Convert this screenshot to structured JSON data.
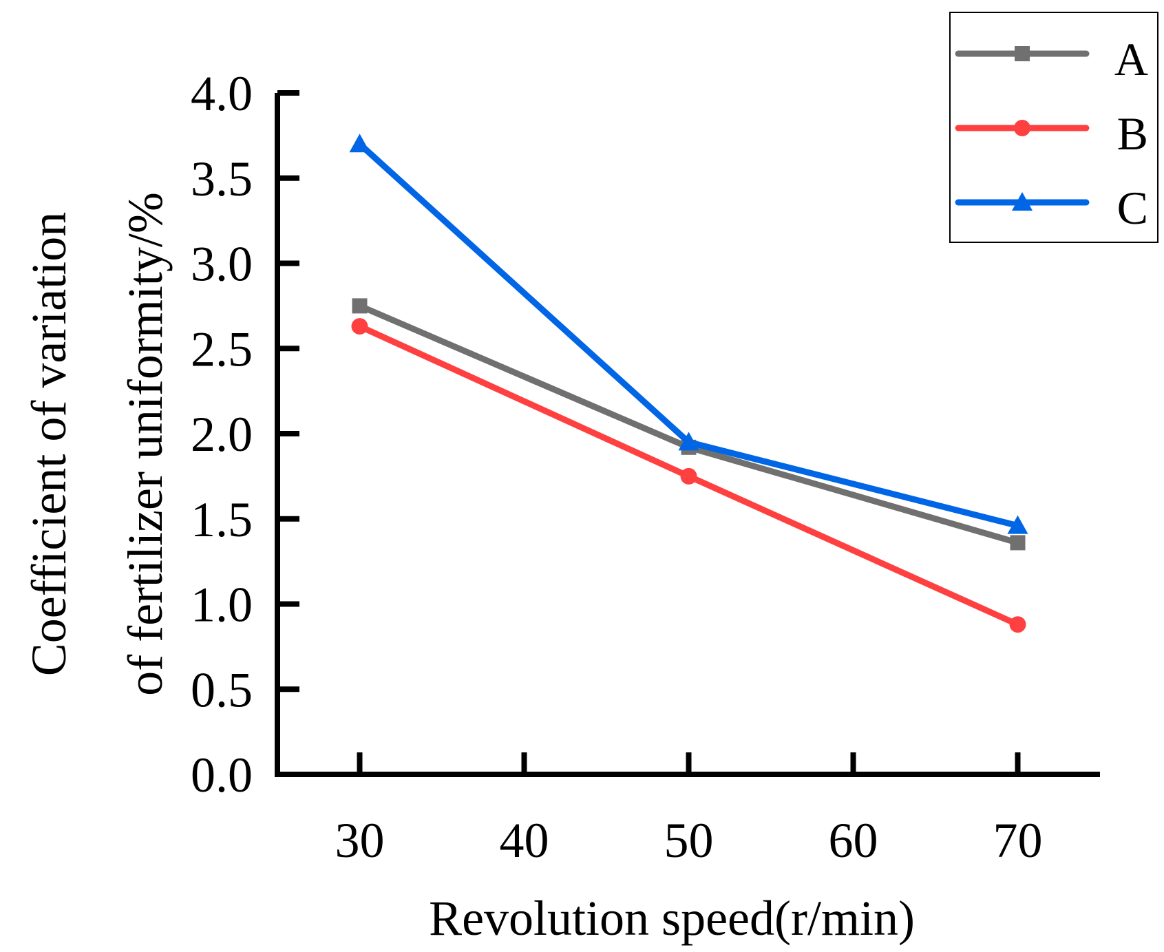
{
  "chart_data": {
    "type": "line",
    "title": "",
    "xlabel": "Revolution speed(r/min)",
    "ylabel_lines": [
      "Coefficient of variation",
      "of fertilizer uniformity/%"
    ],
    "x": [
      30,
      50,
      70
    ],
    "xlim": [
      25,
      75
    ],
    "ylim": [
      0,
      4.0
    ],
    "xticks": [
      30,
      40,
      50,
      60,
      70
    ],
    "xtick_labels": [
      "30",
      "40",
      "50",
      "60",
      "70"
    ],
    "yticks": [
      0,
      0.5,
      1.0,
      1.5,
      2.0,
      2.5,
      3.0,
      3.5,
      4.0
    ],
    "ytick_labels": [
      "0.0",
      "0.5",
      "1.0",
      "1.5",
      "2.0",
      "2.5",
      "3.0",
      "3.5",
      "4.0"
    ],
    "grid": false,
    "legend_position": "top-right",
    "series": [
      {
        "name": "A",
        "values": [
          2.75,
          1.92,
          1.36
        ],
        "color": "#707070",
        "marker": "square"
      },
      {
        "name": "B",
        "values": [
          2.63,
          1.75,
          0.88
        ],
        "color": "#ff4040",
        "marker": "circle"
      },
      {
        "name": "C",
        "values": [
          3.7,
          1.95,
          1.46
        ],
        "color": "#0066e6",
        "marker": "triangle"
      }
    ]
  }
}
